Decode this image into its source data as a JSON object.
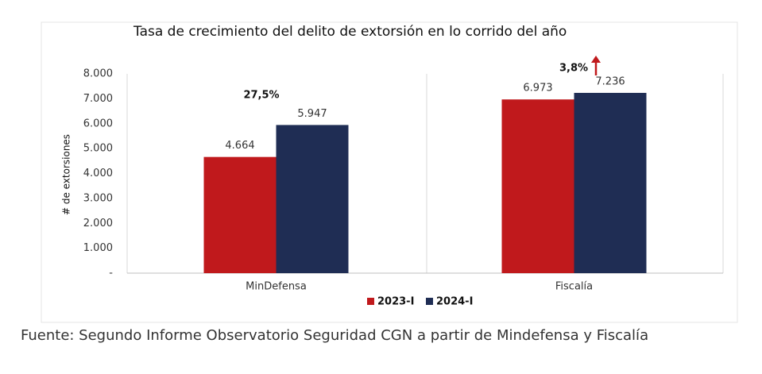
{
  "chart_data": {
    "type": "bar",
    "title": "Tasa de crecimiento del delito de extorsión en lo corrido del año",
    "y_label": "# de extorsiones",
    "categories": [
      "MinDefensa",
      "Fiscalía"
    ],
    "series": [
      {
        "name": "2023-I",
        "color": "#c0191c",
        "values": [
          4664,
          6973
        ],
        "value_labels": [
          "4.664",
          "6.973"
        ]
      },
      {
        "name": "2024-I",
        "color": "#1f2d54",
        "values": [
          5947,
          7236
        ],
        "value_labels": [
          "5.947",
          "7.236"
        ]
      }
    ],
    "ylim": [
      0,
      8000
    ],
    "yticks": [
      {
        "value": 0,
        "label": "-"
      },
      {
        "value": 1000,
        "label": "1.000"
      },
      {
        "value": 2000,
        "label": "2.000"
      },
      {
        "value": 3000,
        "label": "3.000"
      },
      {
        "value": 4000,
        "label": "4.000"
      },
      {
        "value": 5000,
        "label": "5.000"
      },
      {
        "value": 6000,
        "label": "6.000"
      },
      {
        "value": 7000,
        "label": "7.000"
      },
      {
        "value": 8000,
        "label": "8.000"
      }
    ],
    "grid": false,
    "annotations": [
      "27,5%",
      "3,8%"
    ]
  },
  "source": "Fuente: Segundo Informe Observatorio Seguridad CGN a partir de Mindefensa y Fiscalía"
}
